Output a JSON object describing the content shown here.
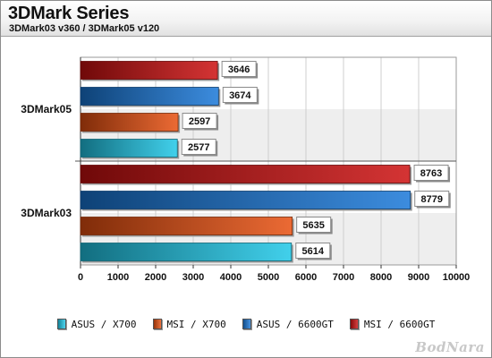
{
  "header": {
    "title": "3DMark Series",
    "subtitle": "3DMark03 v360 / 3DMark05 v120"
  },
  "chart_data": {
    "type": "bar",
    "orientation": "horizontal",
    "title": "3DMark Series",
    "subtitle": "3DMark03 v360 / 3DMark05 v120",
    "categories": [
      "3DMark05",
      "3DMark03"
    ],
    "series": [
      {
        "name": "ASUS / X700",
        "values": [
          2577,
          5614
        ],
        "color": "#20c8e8"
      },
      {
        "name": "MSI / X700",
        "values": [
          2597,
          5635
        ],
        "color": "#e85010"
      },
      {
        "name": "ASUS / 6600GT",
        "values": [
          3674,
          8779
        ],
        "color": "#1a78d8"
      },
      {
        "name": "MSI / 6600GT",
        "values": [
          3646,
          8763
        ],
        "color": "#cc1010"
      }
    ],
    "x_ticks": [
      "0",
      "1000",
      "2000",
      "3000",
      "4000",
      "5000",
      "6000",
      "7000",
      "8000",
      "9000",
      "10000"
    ],
    "xlim": [
      0,
      10000
    ],
    "grid": true,
    "data_labels": true,
    "legend_position": "bottom"
  },
  "watermark": "BodNara"
}
